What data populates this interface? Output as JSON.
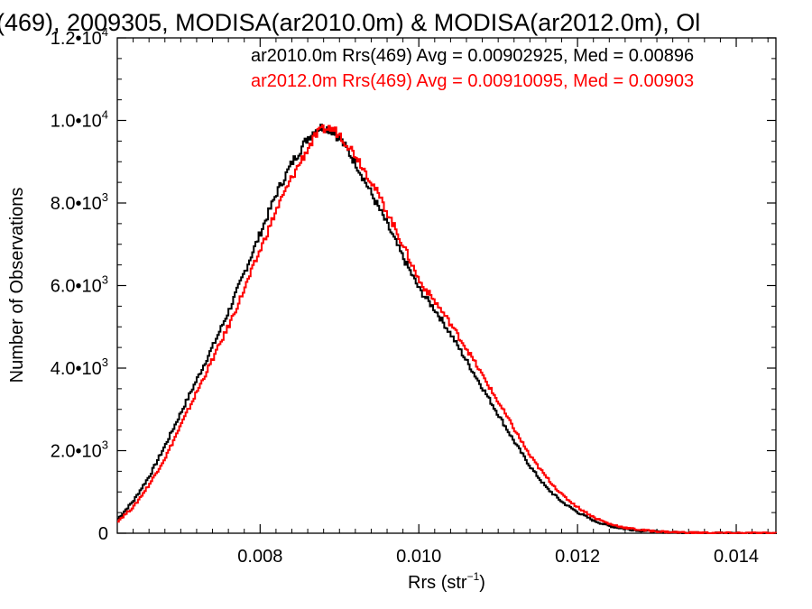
{
  "chart_data": {
    "type": "line",
    "title": "(469), 2009305, MODISA(ar2010.0m) & MODISA(ar2012.0m), Ol",
    "xlabel": "Rrs (str",
    "xlabel_sup": "−1",
    "xlabel_close": ")",
    "ylabel": "Number of Observations",
    "xlim": [
      0.0062,
      0.0145
    ],
    "ylim": [
      0,
      12000
    ],
    "x_ticks": [
      {
        "value": 0.008,
        "label": "0.008"
      },
      {
        "value": 0.01,
        "label": "0.010"
      },
      {
        "value": 0.012,
        "label": "0.012"
      },
      {
        "value": 0.014,
        "label": "0.014"
      }
    ],
    "y_ticks": [
      {
        "value": 0,
        "mant": "0",
        "exp": ""
      },
      {
        "value": 2000,
        "mant": "2.0•10",
        "exp": "3"
      },
      {
        "value": 4000,
        "mant": "4.0•10",
        "exp": "3"
      },
      {
        "value": 6000,
        "mant": "6.0•10",
        "exp": "3"
      },
      {
        "value": 8000,
        "mant": "8.0•10",
        "exp": "3"
      },
      {
        "value": 10000,
        "mant": "1.0•10",
        "exp": "4"
      },
      {
        "value": 12000,
        "mant": "1.2•10",
        "exp": "4"
      }
    ],
    "annotations": [
      {
        "text": "ar2010.0m Rrs(469) Avg = 0.00902925, Med = 0.00896",
        "color": "#000000"
      },
      {
        "text": "ar2012.0m Rrs(469) Avg = 0.00910095, Med = 0.00903",
        "color": "#ff0000"
      }
    ],
    "series": [
      {
        "color": "#000000",
        "x": [
          0.0062,
          0.0064,
          0.0066,
          0.0068,
          0.007,
          0.0072,
          0.0074,
          0.0076,
          0.0078,
          0.008,
          0.0082,
          0.0084,
          0.0086,
          0.0087,
          0.0088,
          0.0089,
          0.009,
          0.0092,
          0.0094,
          0.0096,
          0.0098,
          0.01,
          0.0102,
          0.0104,
          0.0106,
          0.0108,
          0.011,
          0.0112,
          0.0114,
          0.0116,
          0.0118,
          0.012,
          0.0122,
          0.0124,
          0.0126,
          0.0128,
          0.013,
          0.0132,
          0.0134,
          0.0136,
          0.0138,
          0.014,
          0.0145
        ],
        "y": [
          350,
          800,
          1400,
          2150,
          2950,
          3750,
          4550,
          5400,
          6350,
          7300,
          8250,
          9000,
          9600,
          9800,
          9850,
          9750,
          9550,
          8950,
          8200,
          7450,
          6650,
          5900,
          5400,
          4800,
          4150,
          3500,
          2850,
          2200,
          1600,
          1100,
          750,
          500,
          300,
          170,
          100,
          60,
          35,
          20,
          12,
          8,
          5,
          3,
          2
        ]
      },
      {
        "color": "#ff0000",
        "x": [
          0.0062,
          0.0064,
          0.0066,
          0.0068,
          0.007,
          0.0072,
          0.0074,
          0.0076,
          0.0078,
          0.008,
          0.0082,
          0.0084,
          0.0086,
          0.0087,
          0.0088,
          0.0089,
          0.009,
          0.0092,
          0.0094,
          0.0096,
          0.0098,
          0.01,
          0.0102,
          0.0104,
          0.0106,
          0.0108,
          0.011,
          0.0112,
          0.0114,
          0.0116,
          0.0118,
          0.012,
          0.0122,
          0.0124,
          0.0126,
          0.0128,
          0.013,
          0.0132,
          0.0134,
          0.0136,
          0.0138,
          0.014,
          0.0145
        ],
        "y": [
          300,
          650,
          1200,
          1850,
          2650,
          3450,
          4250,
          5050,
          5950,
          6900,
          7850,
          8650,
          9350,
          9650,
          9800,
          9800,
          9650,
          9150,
          8500,
          7750,
          6950,
          6100,
          5600,
          5050,
          4450,
          3800,
          3150,
          2500,
          1850,
          1350,
          920,
          620,
          380,
          220,
          130,
          75,
          45,
          25,
          15,
          9,
          6,
          4,
          2
        ]
      }
    ]
  }
}
